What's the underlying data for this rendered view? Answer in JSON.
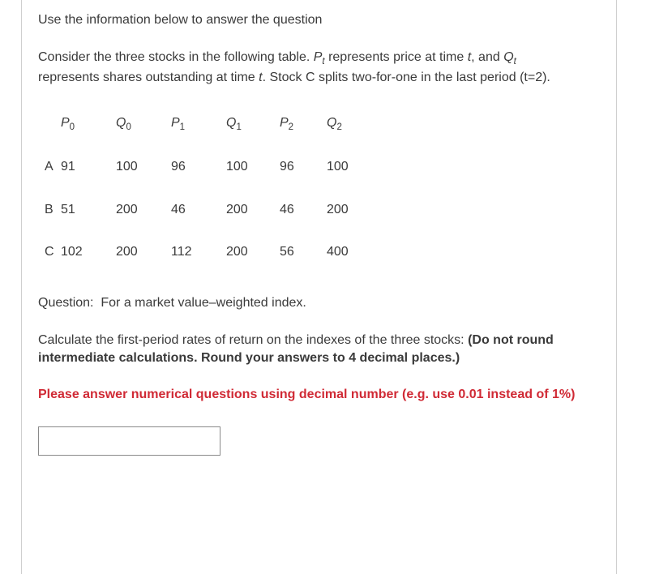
{
  "intro": "Use the information below to answer the question",
  "context": {
    "part1": "Consider the three stocks in the following table. ",
    "pvar": "P",
    "psub": "t",
    "part2": " represents price at time ",
    "tvar": "t",
    "part3": ", and ",
    "qvar": "Q",
    "qsub": "t",
    "part4": " represents shares outstanding at time ",
    "tvar2": "t",
    "part5": ". Stock C splits two-for-one in the last period (t=2)."
  },
  "table": {
    "headers": {
      "p0": {
        "base": "P",
        "sub": "0"
      },
      "q0": {
        "base": "Q",
        "sub": "0"
      },
      "p1": {
        "base": "P",
        "sub": "1"
      },
      "q1": {
        "base": "Q",
        "sub": "1"
      },
      "p2": {
        "base": "P",
        "sub": "2"
      },
      "q2": {
        "base": "Q",
        "sub": "2"
      }
    },
    "rows": [
      {
        "label": "A",
        "p0": "91",
        "q0": "100",
        "p1": "96",
        "q1": "100",
        "p2": "96",
        "q2": "100"
      },
      {
        "label": "B",
        "p0": "51",
        "q0": "200",
        "p1": "46",
        "q1": "200",
        "p2": "46",
        "q2": "200"
      },
      {
        "label": "C",
        "p0": "102",
        "q0": "200",
        "p1": "112",
        "q1": "200",
        "p2": "56",
        "q2": "400"
      }
    ]
  },
  "question_prefix": "Question:  For a market value–weighted index.",
  "calc_text": "Calculate the first-period rates of return on the indexes of the three stocks: ",
  "calc_bold": "(Do not round intermediate calculations. Round your answers to 4 decimal places.)",
  "warning": "Please answer numerical questions using decimal number (e.g. use 0.01 instead of 1%)",
  "input_value": "",
  "colors": {
    "text": "#3a3a3a",
    "border": "#cfcfcf",
    "warn": "#d02a35",
    "background": "#ffffff"
  }
}
